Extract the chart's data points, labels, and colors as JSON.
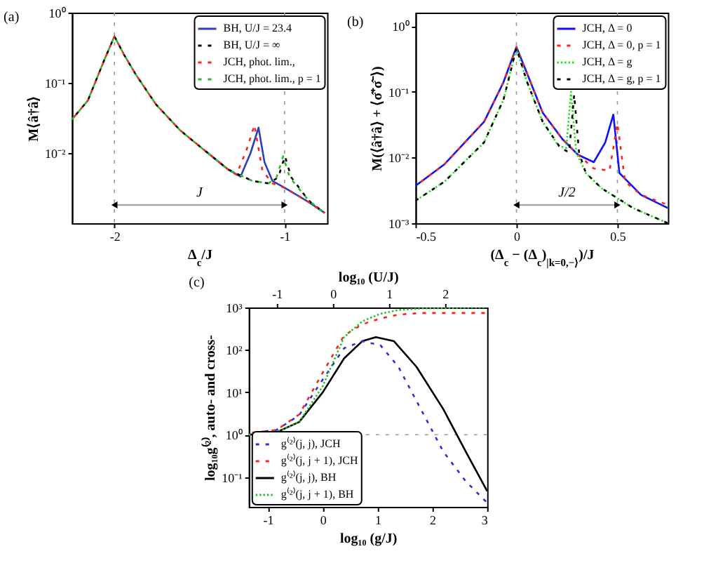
{
  "chart_data": [
    {
      "type": "line",
      "title": "(a)",
      "xlabel": "Δ$_{c}$/J",
      "ylabel": "M⟨â†â⟩",
      "log": "y",
      "xlim": [
        -2.25,
        -0.75
      ],
      "xticks": [
        -2,
        -1
      ],
      "ylim": [
        0.001,
        1
      ],
      "yticks": [
        {
          "value": 1,
          "label": "10⁰"
        },
        {
          "value": 0.1,
          "label": "10⁻¹"
        },
        {
          "value": 0.01,
          "label": "10⁻²"
        }
      ],
      "legend": "top right",
      "grid": false,
      "series": [
        {
          "name": "BH, U/J = 23.4",
          "color": "#2b3fbf",
          "line_style": "solid",
          "x": [
            -1.472,
            -1.33,
            -1.259,
            -1.2,
            -1.153,
            -1.118,
            -1.071,
            -1,
            -0.858,
            -0.764
          ],
          "values": [
            0.011,
            0.0058,
            0.0046,
            0.01,
            0.023,
            0.0074,
            0.004,
            0.0032,
            0.002,
            0.0014
          ]
        },
        {
          "name": "BH, U/J = ∞",
          "color": "#000000",
          "line_style": "dashed",
          "x": [
            -2.25,
            -2.156,
            -2.06,
            -2,
            -1.943,
            -1.873,
            -1.755,
            -1.613,
            -1.472,
            -1.33,
            -1.189,
            -1.094,
            -1.037,
            -0.998,
            -0.96,
            -0.858,
            -0.764
          ],
          "values": [
            0.03,
            0.056,
            0.21,
            0.46,
            0.25,
            0.13,
            0.049,
            0.021,
            0.011,
            0.0058,
            0.004,
            0.0037,
            0.0045,
            0.009,
            0.0045,
            0.0021,
            0.0014
          ]
        },
        {
          "name": "JCH, phot. lim.,",
          "color": "#ff2020",
          "line_style": "dashed",
          "x": [
            -2.25,
            -2.156,
            -2.06,
            -2,
            -1.943,
            -1.873,
            -1.755,
            -1.613,
            -1.472,
            -1.33,
            -1.283,
            -1.224,
            -1.177,
            -1.13,
            -1.071,
            -1,
            -0.858,
            -0.764
          ],
          "values": [
            0.03,
            0.056,
            0.21,
            0.46,
            0.25,
            0.13,
            0.049,
            0.021,
            0.011,
            0.0058,
            0.0049,
            0.011,
            0.025,
            0.0056,
            0.0037,
            0.0032,
            0.002,
            0.0014
          ]
        },
        {
          "name": "JCH, phot. lim., p = 1",
          "color": "#20c020",
          "line_style": "dashed",
          "x": [
            -2.25,
            -2.156,
            -2.06,
            -2,
            -1.943,
            -1.873,
            -1.755,
            -1.613,
            -1.472,
            -1.33,
            -1.189,
            -1.094,
            -1.047,
            -1.008,
            -0.97,
            -0.858,
            -0.764
          ],
          "values": [
            0.03,
            0.056,
            0.21,
            0.46,
            0.25,
            0.13,
            0.049,
            0.021,
            0.011,
            0.0058,
            0.004,
            0.0037,
            0.0045,
            0.009,
            0.0045,
            0.0021,
            0.0014
          ]
        }
      ],
      "ref_lines": [
        {
          "axis": "x",
          "value": -2
        },
        {
          "axis": "x",
          "value": -1
        }
      ],
      "annotations": [
        "J"
      ]
    },
    {
      "type": "line",
      "title": "(b)",
      "xlabel": "(Δ$_{c}$ − (Δ$_{c}$)$_{|k=0,−⟩}$)/J",
      "ylabel": "M(⟨â†â⟩ + ⟨σ̂⁺σ̂⁻⟩)",
      "log": "y",
      "xlim": [
        -0.5,
        0.75
      ],
      "xticks": [
        -0.5,
        0,
        0.5
      ],
      "ylim": [
        0.001,
        1.6
      ],
      "yticks": [
        {
          "value": 1,
          "label": "10⁰"
        },
        {
          "value": 0.1,
          "label": "10⁻¹"
        },
        {
          "value": 0.01,
          "label": "10⁻²"
        },
        {
          "value": 0.001,
          "label": "10⁻³"
        }
      ],
      "legend": "top right",
      "grid": false,
      "series": [
        {
          "name": "JCH, Δ = 0",
          "color": "#1010ff",
          "line_style": "solid",
          "x": [
            -0.5,
            -0.356,
            -0.16,
            -0.064,
            0,
            0.053,
            0.13,
            0.228,
            0.305,
            0.383,
            0.44,
            0.48,
            0.51,
            0.617,
            0.75
          ],
          "values": [
            0.0037,
            0.0079,
            0.035,
            0.14,
            0.48,
            0.19,
            0.048,
            0.019,
            0.011,
            0.0085,
            0.017,
            0.045,
            0.0058,
            0.0027,
            0.0017
          ]
        },
        {
          "name": "JCH, Δ = 0, p = 1",
          "color": "#ff2020",
          "line_style": "dashed",
          "x": [
            -0.5,
            -0.356,
            -0.16,
            -0.064,
            0,
            0.053,
            0.13,
            0.228,
            0.305,
            0.383,
            0.461,
            0.5,
            0.538,
            0.617,
            0.75
          ],
          "values": [
            0.0037,
            0.0079,
            0.035,
            0.14,
            0.48,
            0.19,
            0.048,
            0.019,
            0.011,
            0.0068,
            0.0063,
            0.033,
            0.0043,
            0.0027,
            0.0019
          ]
        },
        {
          "name": "JCH, Δ = g",
          "color": "#20e020",
          "line_style": "dotted",
          "x": [
            -0.5,
            -0.356,
            -0.16,
            -0.064,
            0,
            0.053,
            0.13,
            0.208,
            0.247,
            0.27,
            0.296,
            0.344,
            0.422,
            0.578,
            0.75
          ],
          "values": [
            0.0022,
            0.0043,
            0.017,
            0.076,
            0.46,
            0.14,
            0.035,
            0.015,
            0.014,
            0.1,
            0.012,
            0.0058,
            0.0034,
            0.0017,
            0.001
          ]
        },
        {
          "name": "JCH, Δ = g, p = 1",
          "color": "#000000",
          "line_style": "dashed",
          "x": [
            -0.5,
            -0.356,
            -0.16,
            -0.064,
            0,
            0.053,
            0.13,
            0.218,
            0.261,
            0.286,
            0.31,
            0.344,
            0.422,
            0.578,
            0.75
          ],
          "values": [
            0.0022,
            0.0043,
            0.017,
            0.076,
            0.46,
            0.14,
            0.035,
            0.014,
            0.012,
            0.09,
            0.012,
            0.0058,
            0.0034,
            0.0017,
            0.001
          ]
        }
      ],
      "ref_lines": [
        {
          "axis": "x",
          "value": 0
        },
        {
          "axis": "x",
          "value": 0.5
        }
      ],
      "annotations": [
        "J/2"
      ]
    },
    {
      "type": "line",
      "title": "(c)",
      "xlabel": "log₁₀ (g/J)",
      "x2label": "log₁₀ (U/J)",
      "ylabel": "log₁₀g⁽²⁾, auto- and cross-",
      "log": "y",
      "xlim": [
        -1.35,
        3
      ],
      "xticks": [
        -1,
        0,
        1,
        2,
        3
      ],
      "x2lim": [
        -1.5,
        2.75
      ],
      "x2ticks": [
        -1,
        0,
        1,
        2
      ],
      "ylim": [
        0.02,
        1000
      ],
      "yticks": [
        {
          "value": 1000,
          "label": "10³"
        },
        {
          "value": 100,
          "label": "10²"
        },
        {
          "value": 10,
          "label": "10¹"
        },
        {
          "value": 1,
          "label": "10⁰"
        },
        {
          "value": 0.1,
          "label": "10⁻¹"
        }
      ],
      "legend": "bottom left",
      "grid": false,
      "series": [
        {
          "name": "g⁽²⁾(j, j), JCH",
          "color": "#3030d0",
          "line_style": "dashed",
          "x": [
            -1.35,
            -0.84,
            -0.43,
            0,
            0.39,
            0.72,
            1.05,
            1.38,
            1.79,
            2.2,
            2.61,
            3
          ],
          "values": [
            1.1,
            1.3,
            2.9,
            20,
            110,
            160,
            130,
            40,
            4,
            0.4,
            0.08,
            0.025
          ]
        },
        {
          "name": "g⁽²⁾(j, j + 1), JCH",
          "color": "#ff2020",
          "line_style": "dashed",
          "x": [
            -1.35,
            -0.84,
            -0.43,
            0,
            0.39,
            0.72,
            1.05,
            1.38,
            1.79,
            3
          ],
          "values": [
            1.1,
            1.3,
            3,
            29,
            220,
            400,
            550,
            680,
            740,
            740
          ]
        },
        {
          "name": "g⁽²⁾(j, j), BH",
          "color": "#000000",
          "line_style": "solid",
          "x": [
            -1.35,
            -0.84,
            -0.43,
            0,
            0.39,
            0.72,
            0.97,
            1.3,
            1.71,
            2.2,
            2.61,
            3
          ],
          "values": [
            1,
            1.15,
            2,
            10,
            63,
            160,
            200,
            160,
            40,
            4,
            0.4,
            0.047
          ]
        },
        {
          "name": "g⁽²⁾(j, j + 1), BH",
          "color": "#20c020",
          "line_style": "dotted",
          "x": [
            -1.35,
            -0.84,
            -0.43,
            0,
            0.39,
            0.72,
            1.05,
            1.38,
            1.79,
            3
          ],
          "values": [
            1,
            1.15,
            2,
            14,
            200,
            470,
            710,
            870,
            950,
            1000
          ]
        }
      ],
      "ref_lines": [
        {
          "axis": "y",
          "value": 1
        }
      ]
    }
  ]
}
